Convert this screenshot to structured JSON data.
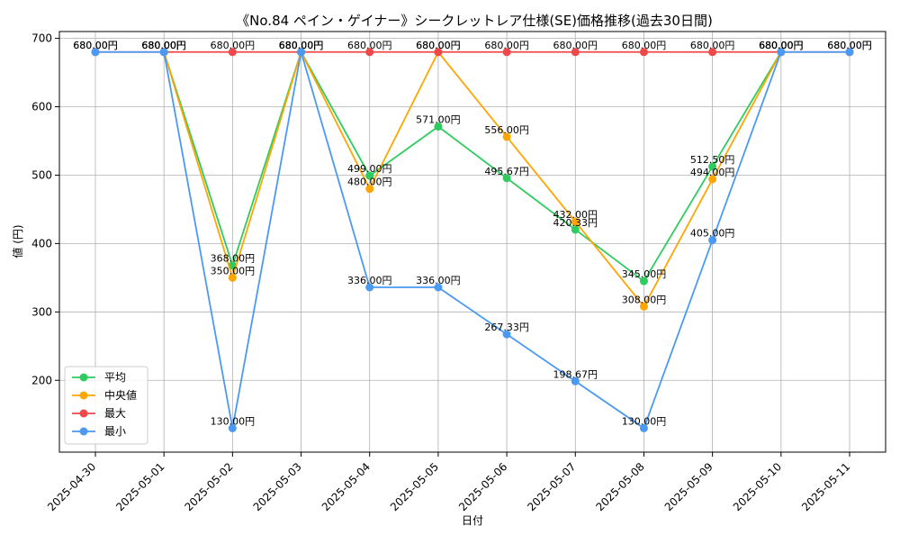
{
  "chart_data": {
    "type": "line",
    "title": "《No.84 ペイン・ゲイナー》シークレットレア仕様(SE)価格推移(過去30日間)",
    "xlabel": "日付",
    "ylabel": "値 (円)",
    "categories": [
      "2025-04-30",
      "2025-05-01",
      "2025-05-02",
      "2025-05-03",
      "2025-05-04",
      "2025-05-05",
      "2025-05-06",
      "2025-05-07",
      "2025-05-08",
      "2025-05-09",
      "2025-05-10",
      "2025-05-11"
    ],
    "ylim": [
      100,
      700
    ],
    "yticks": [
      200,
      300,
      400,
      500,
      600,
      700
    ],
    "grid": true,
    "legend_position": "lower-left",
    "value_suffix": "円",
    "series": [
      {
        "name": "平均",
        "color": "#2ecc5f",
        "values": [
          null,
          680,
          368,
          680,
          499,
          571,
          495.67,
          420.33,
          345,
          512.5,
          680,
          null
        ]
      },
      {
        "name": "中央値",
        "color": "#ffa500",
        "values": [
          null,
          680,
          350,
          680,
          480,
          680,
          556,
          432,
          308,
          494,
          680,
          null
        ]
      },
      {
        "name": "最大",
        "color": "#f04848",
        "values": [
          680,
          680,
          680,
          680,
          680,
          680,
          680,
          680,
          680,
          680,
          680,
          680
        ]
      },
      {
        "name": "最小",
        "color": "#4a9af4",
        "values": [
          680,
          680,
          130,
          680,
          336,
          336,
          267.33,
          198.67,
          130,
          405,
          680,
          680
        ]
      }
    ]
  }
}
